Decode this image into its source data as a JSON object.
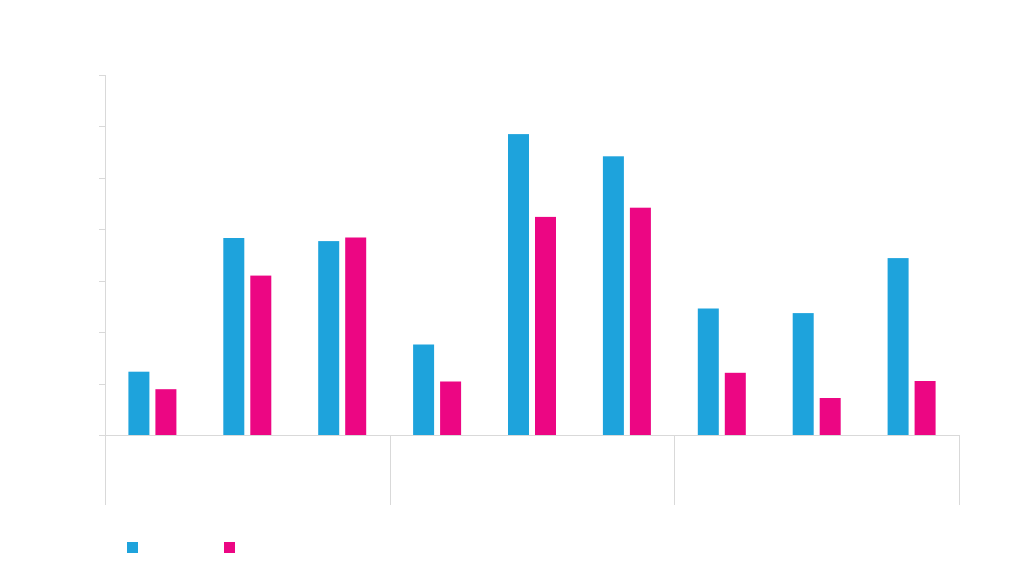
{
  "chart_data": {
    "type": "bar",
    "title": "",
    "xlabel": "",
    "ylabel": "",
    "ylim": [
      0,
      7
    ],
    "y_tick_step": 1,
    "categories": [
      "",
      "",
      "",
      "",
      "",
      "",
      "",
      "",
      ""
    ],
    "groups": [
      {
        "label": "",
        "size": 3
      },
      {
        "label": "",
        "size": 3
      },
      {
        "label": "",
        "size": 3
      }
    ],
    "series": [
      {
        "name": "",
        "color": "#1ea3dc",
        "values": [
          1.23,
          3.83,
          3.77,
          1.76,
          5.85,
          5.42,
          2.46,
          2.37,
          3.44
        ]
      },
      {
        "name": "",
        "color": "#ec0683",
        "values": [
          0.89,
          3.1,
          3.84,
          1.04,
          4.24,
          4.42,
          1.21,
          0.72,
          1.05
        ]
      }
    ],
    "legend": {
      "position": "bottom-left"
    },
    "grid": false
  }
}
